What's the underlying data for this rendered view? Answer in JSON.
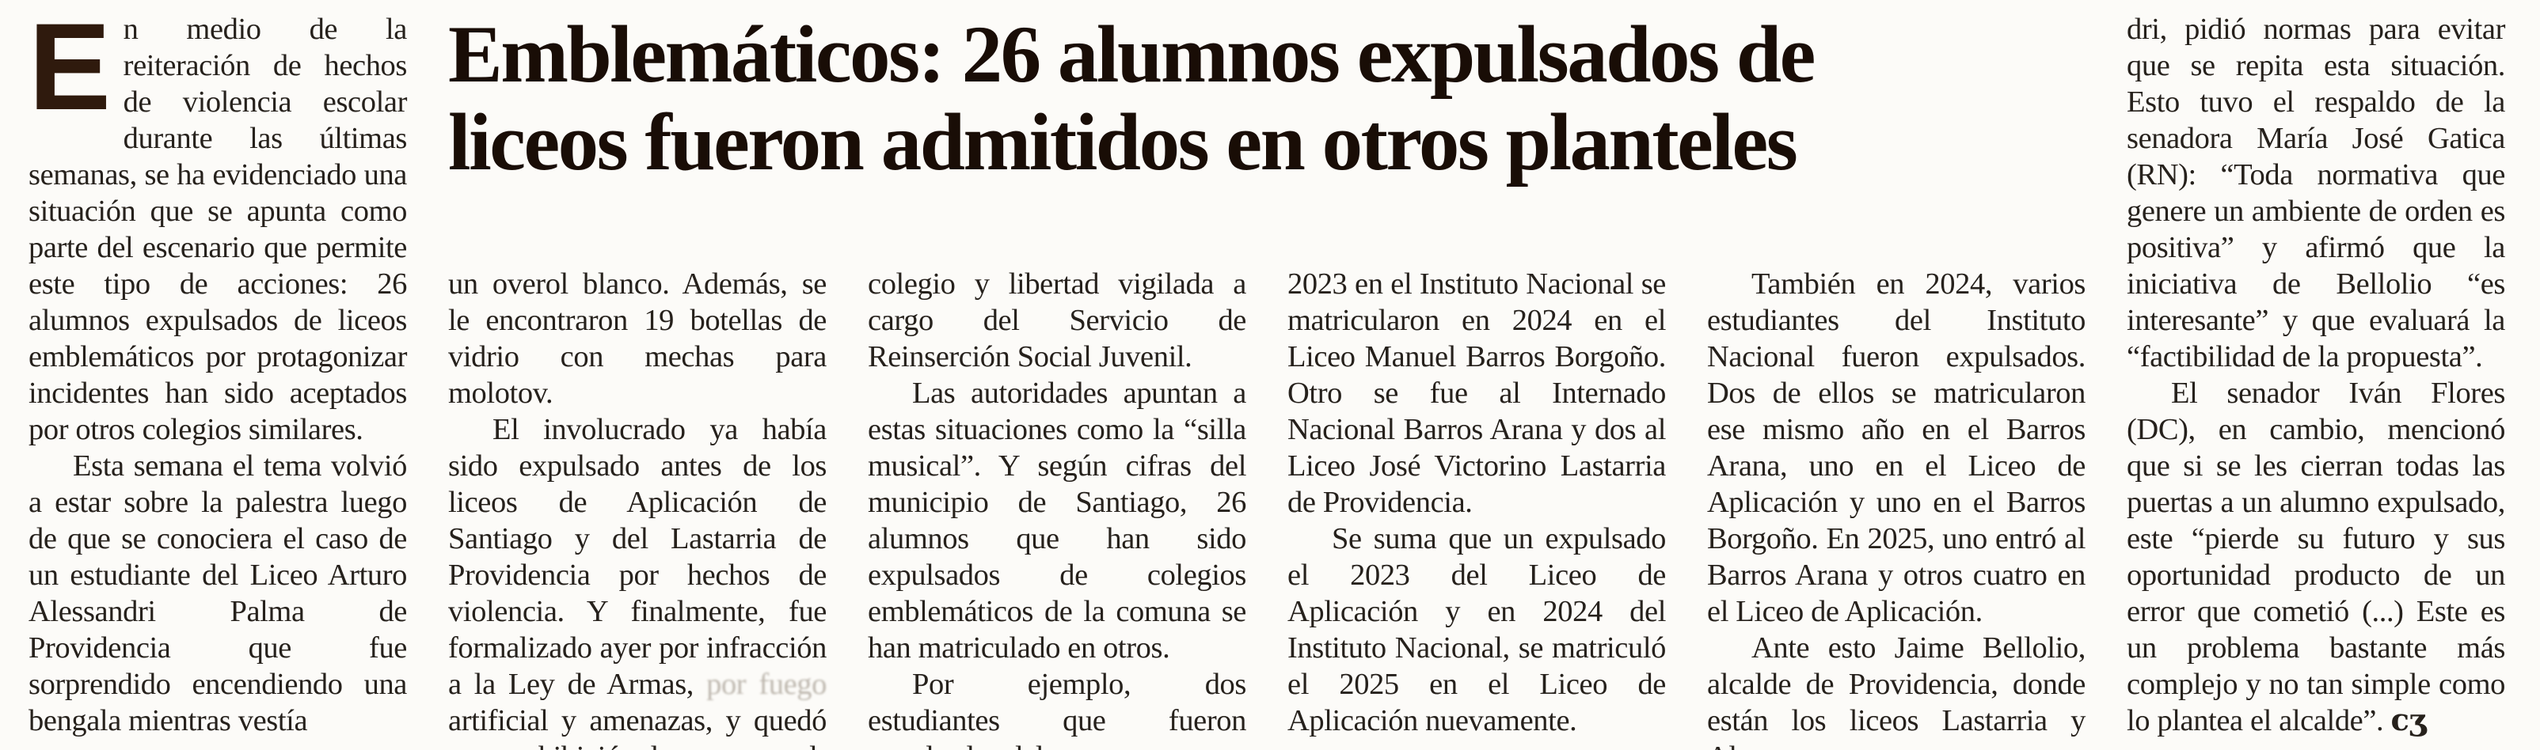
{
  "colors": {
    "background": "#fcfbf8",
    "body_ink": "#26211c",
    "headline_ink": "#190d06",
    "drop_cap_brown": "#2f1a0d",
    "faded_smudge": "#beb8af"
  },
  "article": {
    "headline_lines": [
      "Emblemáticos: 26 alumnos expulsados de",
      "liceos fueron admitidos en otros planteles"
    ],
    "drop_cap": "E",
    "end_mark": "cʒ",
    "columns": {
      "c1": {
        "p0": "n medio de la reiteración de hechos de violencia escolar durante las últimas semanas, se ha evidenciado una situación que se apunta como parte del escenario que permite este tipo de acciones: 26 alumnos expulsados de liceos emblemáticos por protagonizar incidentes han sido aceptados por otros colegios similares.",
        "p1": "Esta semana el tema volvió a estar sobre la palestra luego de que se conociera el caso de un estudiante del Liceo Arturo Alessandri Palma de Providencia que fue sorprendido encendiendo una bengala mientras vestía"
      },
      "c2": {
        "p0": "un overol blanco. Además, se le encontraron 19 botellas de vidrio con mechas para molotov.",
        "p1a": "El involucrado ya había sido expulsado antes de los liceos de Aplicación de Santiago y del Lastarria de Providencia por hechos de violencia. Y finalmente, fue formalizado ayer por infracción a la Ley de Armas, ",
        "p1_faded": "por fuego ",
        "p1b": "artificial y amenazas, y quedó con prohibición de acercarse al"
      },
      "c3": {
        "p0": "colegio y libertad vigilada a cargo del Servicio de Reinserción Social Juvenil.",
        "p1": "Las autoridades apuntan a estas situaciones como la “silla musical”. Y según cifras del municipio de Santiago, 26 alumnos que han sido expulsados de colegios emblemáticos de la comuna se han matriculado en otros.",
        "p2": "Por ejemplo, dos estudiantes que fueron expulsados del"
      },
      "c4": {
        "p0": "2023 en el Instituto Nacional se matricularon en 2024 en el Liceo Manuel Barros Borgoño. Otro se fue al Internado Nacional Barros Arana y dos al Liceo José Victorino Lastarria de Providencia.",
        "p1": "Se suma que un expulsado el 2023 del Liceo de Aplicación y en 2024 del Instituto Nacional, se matriculó el 2025 en el Liceo de Aplicación nuevamente."
      },
      "c5": {
        "p0": "También en 2024, varios estudiantes del Instituto Nacional fueron expulsados. Dos de ellos se matricularon ese mismo año en el Barros Arana, uno en el Liceo de Aplicación y uno en el Barros Borgoño. En 2025, uno entró al Barros Arana y otros cuatro en el Liceo de Aplicación.",
        "p1": "Ante esto Jaime Bellolio, alcalde de Providencia, donde están los liceos Lastarria y Alessan-"
      },
      "c6": {
        "p0": "dri, pidió normas para evitar que se repita esta situación. Esto tuvo el respaldo de la senadora María José Gatica (RN): “Toda normativa que genere un ambiente de orden es positiva” y afirmó que la iniciativa de Bellolio “es interesante” y que evaluará la “factibilidad de la propuesta”.",
        "p1": "El senador Iván Flores (DC), en cambio, mencionó que si se les cierran todas las puertas a un alumno expulsado, este “pierde su futuro y sus oportunidad producto de un error que cometió (...) Este es un problema bastante más complejo y no tan simple como lo plantea el alcalde”."
      }
    }
  }
}
